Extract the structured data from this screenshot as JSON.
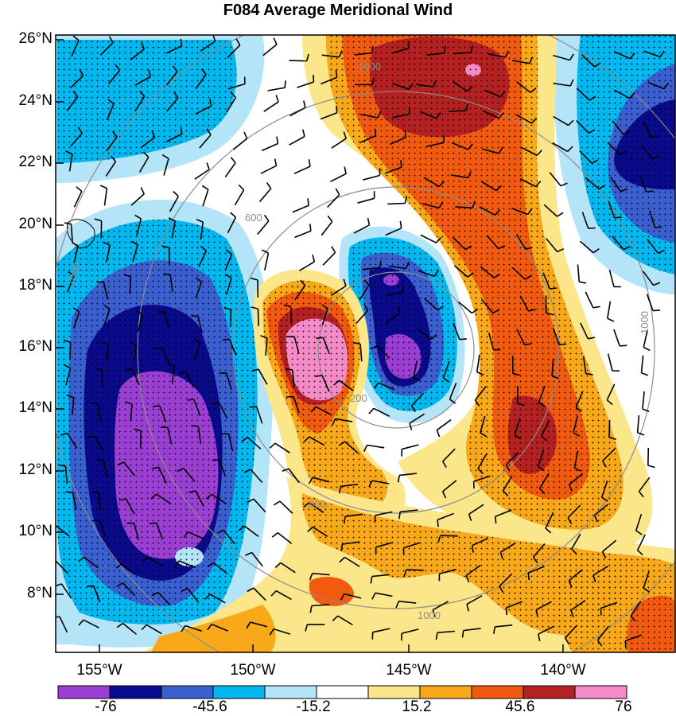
{
  "title": "F084 Average Meridional Wind",
  "lat_labels": [
    "26°N",
    "24°N",
    "22°N",
    "20°N",
    "18°N",
    "16°N",
    "14°N",
    "12°N",
    "10°N",
    "8°N"
  ],
  "lon_labels": [
    "155°W",
    "150°W",
    "145°W",
    "140°W"
  ],
  "ring_labels": [
    "200",
    "600",
    "1000"
  ],
  "colorbar": {
    "colors": [
      "#9b3fd4",
      "#0a0a8c",
      "#3a5fd0",
      "#00b8f0",
      "#b4e4f8",
      "#ffffff",
      "#fbe68a",
      "#f8a818",
      "#f25a10",
      "#b52020",
      "#f58ac8"
    ],
    "labels": [
      "-76",
      "-45.6",
      "-15.2",
      "15.2",
      "45.6",
      "76"
    ]
  },
  "colors": {
    "strong_neg": "#9b3fd4",
    "neg_dark": "#0a0a8c",
    "neg_mid": "#3a5fd0",
    "neg_light": "#00b8f0",
    "neg_pale": "#b4e4f8",
    "pos_pale": "#fbe68a",
    "pos_light": "#f8a818",
    "pos_mid": "#f25a10",
    "pos_dark": "#b52020",
    "strong_pos": "#f58ac8",
    "ring": "#8c8c8c"
  }
}
